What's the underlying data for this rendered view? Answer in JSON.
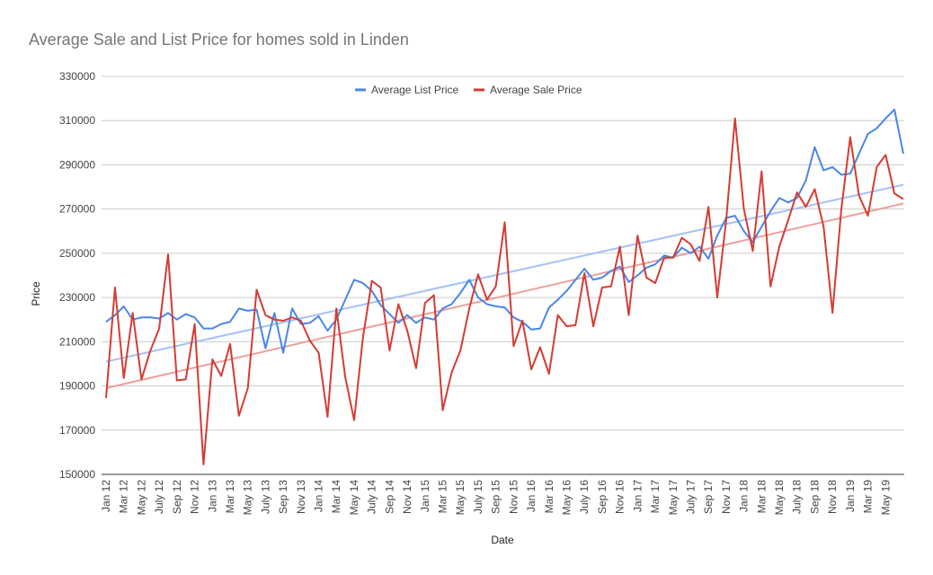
{
  "chart_data": {
    "type": "line",
    "title": "Average Sale and List Price for homes sold in Linden",
    "xlabel": "Date",
    "ylabel": "Price",
    "ylim": [
      150000,
      330000
    ],
    "yticks": [
      150000,
      170000,
      190000,
      210000,
      230000,
      250000,
      270000,
      290000,
      310000,
      330000
    ],
    "xtick_labels": [
      "Jan 12",
      "Mar 12",
      "May 12",
      "July 12",
      "Sep 12",
      "Nov 12",
      "Jan 13",
      "Mar 13",
      "May 13",
      "July 13",
      "Sep 13",
      "Nov 13",
      "Jan 14",
      "Mar 14",
      "May 14",
      "July 14",
      "Sep 14",
      "Nov 14",
      "Jan 15",
      "Mar 15",
      "May 15",
      "July 15",
      "Sep 15",
      "Nov 15",
      "Jan 16",
      "Mar 16",
      "May 16",
      "July 16",
      "Sep 16",
      "Nov 16",
      "Jan 17",
      "Mar 17",
      "May 17",
      "July 17",
      "Sep 17",
      "Nov 17",
      "Jan 18",
      "Mar 18",
      "May 18",
      "July 18",
      "Sep 18",
      "Nov 18",
      "Jan 19",
      "Mar 19",
      "May 19"
    ],
    "x": [
      "Jan 12",
      "Feb 12",
      "Mar 12",
      "Apr 12",
      "May 12",
      "Jun 12",
      "Jul 12",
      "Aug 12",
      "Sep 12",
      "Oct 12",
      "Nov 12",
      "Dec 12",
      "Jan 13",
      "Feb 13",
      "Mar 13",
      "Apr 13",
      "May 13",
      "Jun 13",
      "Jul 13",
      "Aug 13",
      "Sep 13",
      "Oct 13",
      "Nov 13",
      "Dec 13",
      "Jan 14",
      "Feb 14",
      "Mar 14",
      "Apr 14",
      "May 14",
      "Jun 14",
      "Jul 14",
      "Aug 14",
      "Sep 14",
      "Oct 14",
      "Nov 14",
      "Dec 14",
      "Jan 15",
      "Feb 15",
      "Mar 15",
      "Apr 15",
      "May 15",
      "Jun 15",
      "Jul 15",
      "Aug 15",
      "Sep 15",
      "Oct 15",
      "Nov 15",
      "Dec 15",
      "Jan 16",
      "Feb 16",
      "Mar 16",
      "Apr 16",
      "May 16",
      "Jun 16",
      "Jul 16",
      "Aug 16",
      "Sep 16",
      "Oct 16",
      "Nov 16",
      "Dec 16",
      "Jan 17",
      "Feb 17",
      "Mar 17",
      "Apr 17",
      "May 17",
      "Jun 17",
      "Jul 17",
      "Aug 17",
      "Sep 17",
      "Oct 17",
      "Nov 17",
      "Dec 17",
      "Jan 18",
      "Feb 18",
      "Mar 18",
      "Apr 18",
      "May 18",
      "Jun 18",
      "Jul 18",
      "Aug 18",
      "Sep 18",
      "Oct 18",
      "Nov 18",
      "Dec 18",
      "Jan 19",
      "Feb 19",
      "Mar 19",
      "Apr 19",
      "May 19",
      "Jun 19",
      "Jul 19"
    ],
    "series": [
      {
        "name": "Average List Price",
        "color": "#4a86e8",
        "values": [
          219000,
          222000,
          226000,
          220000,
          221000,
          221000,
          220500,
          223000,
          220000,
          222500,
          221000,
          216000,
          216000,
          218000,
          219000,
          225000,
          224000,
          224500,
          207000,
          223000,
          205000,
          225000,
          218000,
          218500,
          221500,
          215000,
          220000,
          229000,
          238000,
          236500,
          233000,
          226500,
          222500,
          218500,
          222000,
          218500,
          221000,
          220000,
          225000,
          227000,
          232000,
          238000,
          230000,
          227000,
          226000,
          225500,
          221000,
          219000,
          215500,
          216000,
          225500,
          229000,
          233000,
          238000,
          243000,
          238000,
          239000,
          242000,
          244000,
          237000,
          240000,
          243500,
          245000,
          249000,
          248000,
          252500,
          250000,
          253000,
          247500,
          258000,
          266000,
          267000,
          260000,
          255000,
          262000,
          269000,
          275000,
          273000,
          275000,
          283000,
          298000,
          287500,
          289000,
          285500,
          286000,
          295000,
          304000,
          306500,
          311000,
          315000,
          295000
        ]
      },
      {
        "name": "Average Sale Price",
        "color": "#d43c34",
        "values": [
          184500,
          234500,
          193500,
          223000,
          193000,
          206000,
          216000,
          249500,
          192500,
          193000,
          218000,
          154500,
          202000,
          194500,
          209000,
          176500,
          189000,
          233500,
          222000,
          220000,
          219500,
          221000,
          219500,
          210500,
          205000,
          176000,
          225000,
          194000,
          174500,
          212000,
          237500,
          234500,
          206000,
          227000,
          215000,
          198000,
          227500,
          231000,
          179000,
          196000,
          206000,
          225000,
          240500,
          229000,
          235000,
          264000,
          208000,
          219500,
          197500,
          207500,
          195500,
          222000,
          217000,
          217500,
          241000,
          217000,
          234500,
          235000,
          253000,
          222000,
          258000,
          239000,
          236500,
          248000,
          248000,
          257000,
          254000,
          246500,
          271000,
          230000,
          265000,
          311000,
          270000,
          251000,
          287000,
          235000,
          253000,
          265000,
          277500,
          271000,
          279000,
          262000,
          223000,
          270000,
          302500,
          276000,
          267000,
          289000,
          294500,
          277000,
          274500
        ]
      }
    ],
    "trendlines": [
      {
        "series": "Average List Price",
        "color": "#a4c2f4",
        "start": 201000,
        "end": 281000
      },
      {
        "series": "Average Sale Price",
        "color": "#eca09a",
        "start": 189000,
        "end": 272500
      }
    ],
    "legend_position": "top",
    "grid": true
  }
}
